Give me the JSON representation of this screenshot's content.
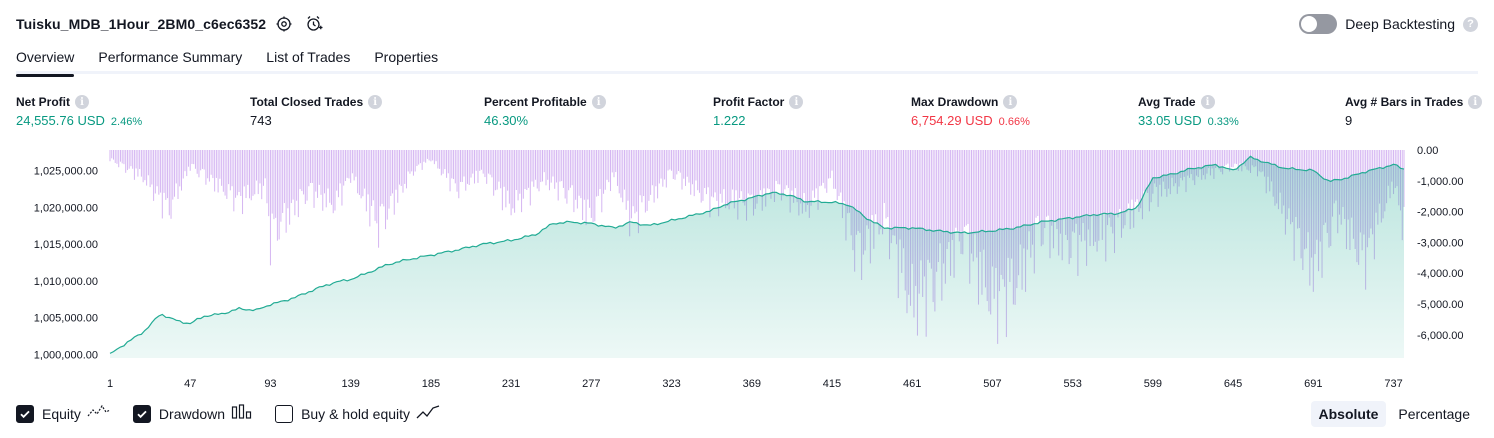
{
  "header": {
    "strategy_name": "Tuisku_MDB_1Hour_2BM0_c6ec6352",
    "settings_icon": "gear-icon",
    "alert_icon": "add-alert-icon",
    "deep_backtesting_label": "Deep Backtesting",
    "deep_backtesting_enabled": false,
    "help_glyph": "?"
  },
  "tabs": [
    {
      "label": "Overview",
      "active": true
    },
    {
      "label": "Performance Summary",
      "active": false
    },
    {
      "label": "List of Trades",
      "active": false
    },
    {
      "label": "Properties",
      "active": false
    }
  ],
  "metrics": [
    {
      "label": "Net Profit",
      "value": "24,555.76 USD",
      "pct": "2.46%",
      "tone": "pos"
    },
    {
      "label": "Total Closed Trades",
      "value": "743",
      "pct": "",
      "tone": "neutral"
    },
    {
      "label": "Percent Profitable",
      "value": "46.30%",
      "pct": "",
      "tone": "pos"
    },
    {
      "label": "Profit Factor",
      "value": "1.222",
      "pct": "",
      "tone": "pos"
    },
    {
      "label": "Max Drawdown",
      "value": "6,754.29 USD",
      "pct": "0.66%",
      "tone": "neg"
    },
    {
      "label": "Avg Trade",
      "value": "33.05 USD",
      "pct": "0.33%",
      "tone": "pos"
    },
    {
      "label": "Avg # Bars in Trades",
      "value": "9",
      "pct": "",
      "tone": "neutral"
    }
  ],
  "info_glyph": "i",
  "legend": [
    {
      "label": "Equity",
      "checked": true,
      "icon": "equity-line-icon"
    },
    {
      "label": "Drawdown",
      "checked": true,
      "icon": "drawdown-bars-icon"
    },
    {
      "label": "Buy & hold equity",
      "checked": false,
      "icon": "buy-hold-line-icon"
    }
  ],
  "mode": {
    "absolute": "Absolute",
    "percentage": "Percentage",
    "selected": "absolute"
  },
  "colors": {
    "equity_line": "#22ab94",
    "equity_fill": "#22ab94",
    "drawdown_bar": "#d5b6f2",
    "positive": "#089981",
    "negative": "#f23645"
  },
  "chart_data": {
    "type": "area",
    "x_ticks": [
      "1",
      "47",
      "93",
      "139",
      "185",
      "231",
      "277",
      "323",
      "369",
      "415",
      "461",
      "507",
      "553",
      "599",
      "645",
      "691",
      "737"
    ],
    "x_range": [
      1,
      743
    ],
    "y_left_ticks": [
      "1,000,000.00",
      "1,005,000.00",
      "1,010,000.00",
      "1,015,000.00",
      "1,020,000.00",
      "1,025,000.00"
    ],
    "y_left_range": [
      999500,
      1027800
    ],
    "y_right_ticks": [
      "0.00",
      "-1,000.00",
      "-2,000.00",
      "-3,000.00",
      "-4,000.00",
      "-5,000.00",
      "-6,000.00"
    ],
    "y_right_range": [
      0,
      -6754
    ],
    "series": [
      {
        "name": "Equity",
        "x": [
          1,
          10,
          20,
          30,
          40,
          47,
          55,
          65,
          75,
          85,
          93,
          100,
          110,
          120,
          130,
          139,
          150,
          160,
          170,
          185,
          200,
          215,
          231,
          245,
          255,
          265,
          277,
          290,
          300,
          310,
          323,
          335,
          345,
          355,
          369,
          380,
          390,
          400,
          415,
          425,
          435,
          445,
          461,
          475,
          490,
          507,
          520,
          535,
          553,
          565,
          580,
          590,
          599,
          610,
          620,
          635,
          645,
          655,
          665,
          675,
          691,
          700,
          710,
          720,
          737,
          743
        ],
        "values": [
          1000000,
          1001500,
          1003000,
          1005500,
          1004500,
          1004200,
          1005200,
          1005500,
          1006200,
          1006000,
          1006800,
          1007200,
          1008000,
          1009000,
          1009800,
          1010200,
          1011200,
          1012200,
          1012800,
          1013500,
          1014200,
          1015000,
          1015500,
          1016300,
          1017800,
          1018000,
          1017800,
          1017200,
          1018000,
          1017500,
          1018200,
          1018900,
          1019500,
          1020500,
          1021300,
          1022000,
          1021700,
          1020800,
          1020700,
          1020300,
          1018500,
          1017200,
          1017200,
          1016800,
          1016500,
          1016800,
          1017200,
          1018000,
          1018600,
          1019000,
          1019200,
          1020000,
          1024000,
          1024500,
          1025200,
          1025800,
          1025000,
          1026800,
          1026000,
          1025300,
          1025000,
          1023500,
          1024000,
          1024800,
          1025800,
          1025200
        ]
      },
      {
        "name": "Drawdown",
        "x": [
          1,
          20,
          35,
          47,
          60,
          75,
          90,
          93,
          100,
          115,
          130,
          139,
          155,
          175,
          185,
          200,
          215,
          231,
          250,
          265,
          277,
          290,
          300,
          323,
          345,
          369,
          385,
          400,
          415,
          430,
          445,
          461,
          475,
          490,
          507,
          520,
          535,
          553,
          575,
          599,
          620,
          645,
          660,
          675,
          691,
          705,
          720,
          737,
          743
        ],
        "values": [
          -400,
          -1200,
          -2600,
          -700,
          -1400,
          -2200,
          -1600,
          -3800,
          -3100,
          -1800,
          -2400,
          -1100,
          -3300,
          -900,
          -400,
          -1700,
          -1000,
          -2500,
          -1300,
          -2000,
          -2900,
          -1100,
          -3100,
          -1000,
          -2200,
          -2400,
          -1700,
          -2600,
          -1200,
          -4700,
          -3000,
          -6700,
          -5700,
          -3800,
          -6600,
          -5900,
          -3500,
          -4200,
          -3600,
          -2000,
          -1300,
          -700,
          -900,
          -2900,
          -5200,
          -2800,
          -4800,
          -1500,
          -3300
        ]
      }
    ]
  }
}
